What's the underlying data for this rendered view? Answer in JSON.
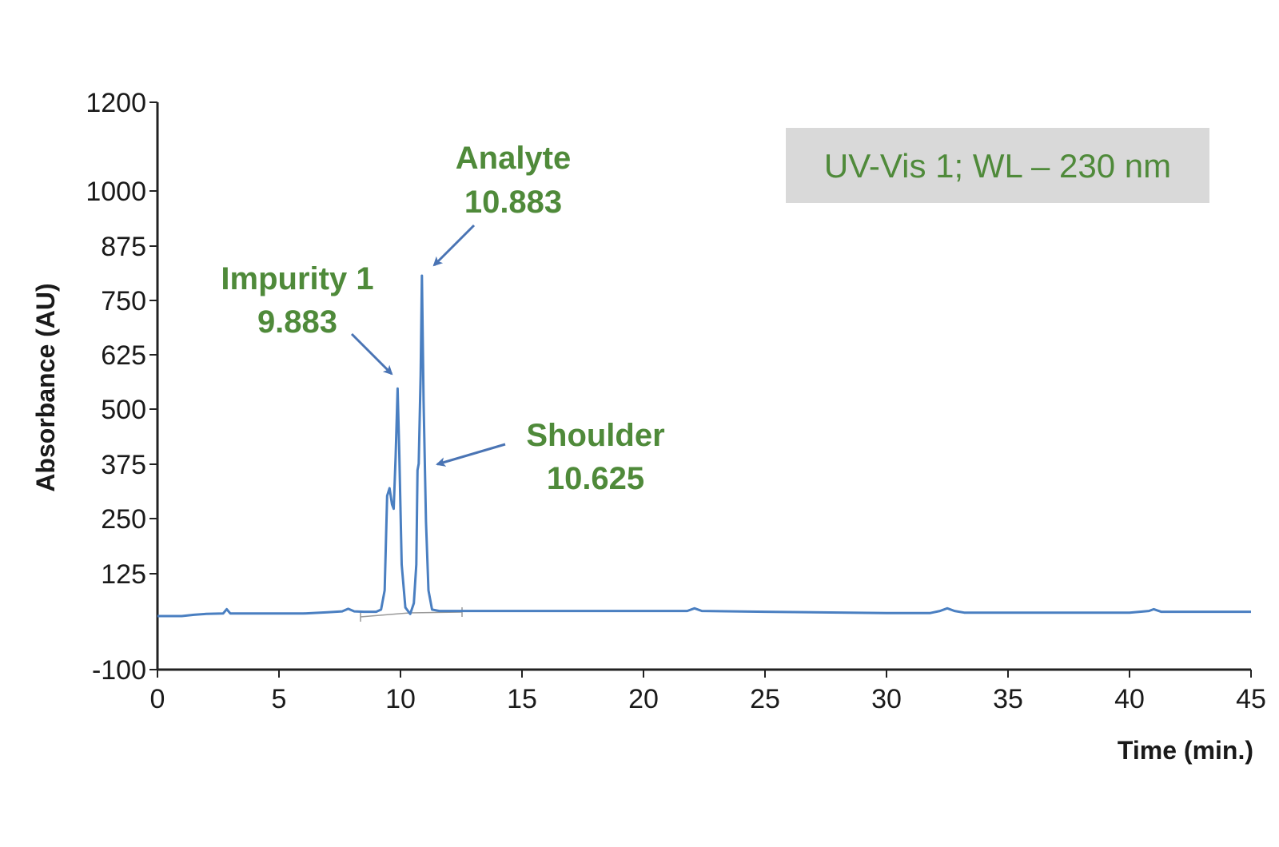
{
  "chart_data": {
    "type": "line",
    "title": "",
    "xlabel": "Time (min.)",
    "ylabel": "Absorbance (AU)",
    "xlim": [
      0,
      45
    ],
    "ylim": [
      -100,
      1200
    ],
    "x_ticks": [
      "0",
      "5",
      "10",
      "15",
      "20",
      "25",
      "30",
      "35",
      "40",
      "45"
    ],
    "y_ticks": [
      "1200",
      "1000",
      "875",
      "750",
      "625",
      "500",
      "375",
      "250",
      "125",
      "-100"
    ],
    "y_tick_values": [
      1200,
      1000,
      875,
      750,
      625,
      500,
      375,
      250,
      125,
      -100
    ],
    "grid": false,
    "legend": {
      "text": "UV-Vis  1; WL – 230 nm",
      "placement": "top-right"
    },
    "series": [
      {
        "x": [
          0,
          1.0,
          1.5,
          2.0,
          2.7,
          2.85,
          3.0,
          3.2,
          5.0,
          6.0,
          7.0,
          7.6,
          7.85,
          8.1,
          8.5,
          9.0,
          9.2,
          9.35,
          9.45,
          9.55,
          9.65,
          9.72,
          9.8,
          9.88,
          9.95,
          10.05,
          10.2,
          10.4,
          10.55,
          10.65,
          10.7,
          10.75,
          10.83,
          10.88,
          10.95,
          11.05,
          11.15,
          11.3,
          11.6,
          12.0,
          15.0,
          20.0,
          21.8,
          22.1,
          22.4,
          25.0,
          30.0,
          31.8,
          32.2,
          32.5,
          32.8,
          33.2,
          35.0,
          40.0,
          40.8,
          41.0,
          41.3,
          45.0
        ],
        "y": [
          0,
          0,
          3,
          5,
          6,
          16,
          6,
          6,
          6,
          6,
          9,
          11,
          17,
          11,
          10,
          10,
          15,
          60,
          280,
          298,
          260,
          250,
          370,
          530,
          380,
          120,
          20,
          5,
          30,
          120,
          340,
          355,
          560,
          793,
          500,
          220,
          60,
          15,
          12,
          12,
          12,
          12,
          12,
          18,
          12,
          10,
          7,
          7,
          12,
          18,
          12,
          8,
          8,
          8,
          12,
          16,
          10,
          10
        ]
      }
    ],
    "annotations": [
      {
        "label": "Impurity 1",
        "value": "9.883"
      },
      {
        "label": "Analyte",
        "value": "10.883"
      },
      {
        "label": "Shoulder",
        "value": "10.625"
      }
    ],
    "colors": {
      "trace": "#4a7fc1",
      "annotation": "#4f8a3a",
      "arrow": "#4a74b4",
      "legend_bg": "#d9d9d9",
      "legend_text": "#4f8a3a"
    }
  }
}
